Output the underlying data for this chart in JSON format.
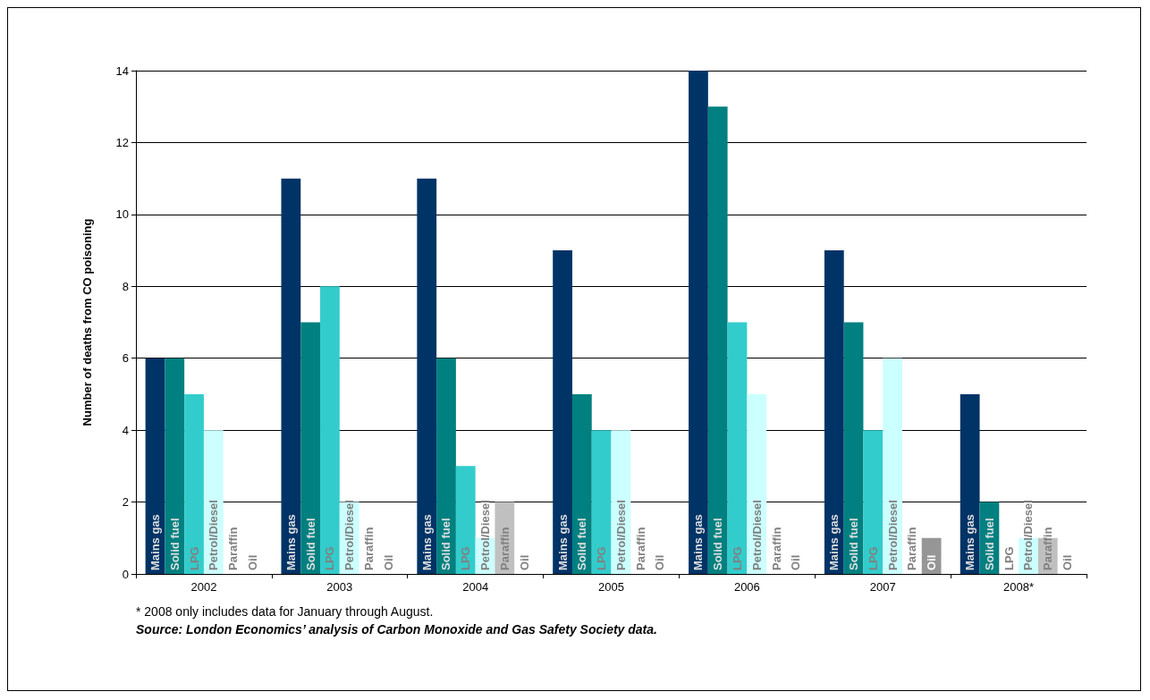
{
  "chart_data": {
    "type": "bar",
    "ylabel": "Number of deaths from CO poisoning",
    "categories": [
      "2002",
      "2003",
      "2004",
      "2005",
      "2006",
      "2007",
      "2008*"
    ],
    "series": [
      {
        "name": "Mains gas",
        "color": "#003366",
        "values": [
          6,
          11,
          11,
          9,
          14,
          9,
          5
        ]
      },
      {
        "name": "Solid fuel",
        "color": "#008080",
        "values": [
          6,
          7,
          6,
          5,
          13,
          7,
          2
        ]
      },
      {
        "name": "LPG",
        "color": "#33cccc",
        "values": [
          5,
          8,
          3,
          4,
          7,
          4,
          0
        ]
      },
      {
        "name": "Petrol/Diesel",
        "color": "#ccffff",
        "values": [
          4,
          2,
          1,
          4,
          5,
          6,
          1
        ]
      },
      {
        "name": "Paraffin",
        "color": "#c0c0c0",
        "values": [
          0,
          0,
          2,
          0,
          0,
          0,
          1
        ]
      },
      {
        "name": "Oil",
        "color": "#969696",
        "values": [
          0,
          0,
          0,
          0,
          0,
          1,
          0
        ]
      }
    ],
    "ylim": [
      0,
      14
    ],
    "yticks": [
      0,
      2,
      4,
      6,
      8,
      10,
      12,
      14
    ],
    "grid": "y",
    "legend": false,
    "annotations": [
      "* 2008 only includes data for January through August.",
      "Source: London Economics’ analysis of Carbon Monoxide and Gas Safety Society data."
    ]
  }
}
